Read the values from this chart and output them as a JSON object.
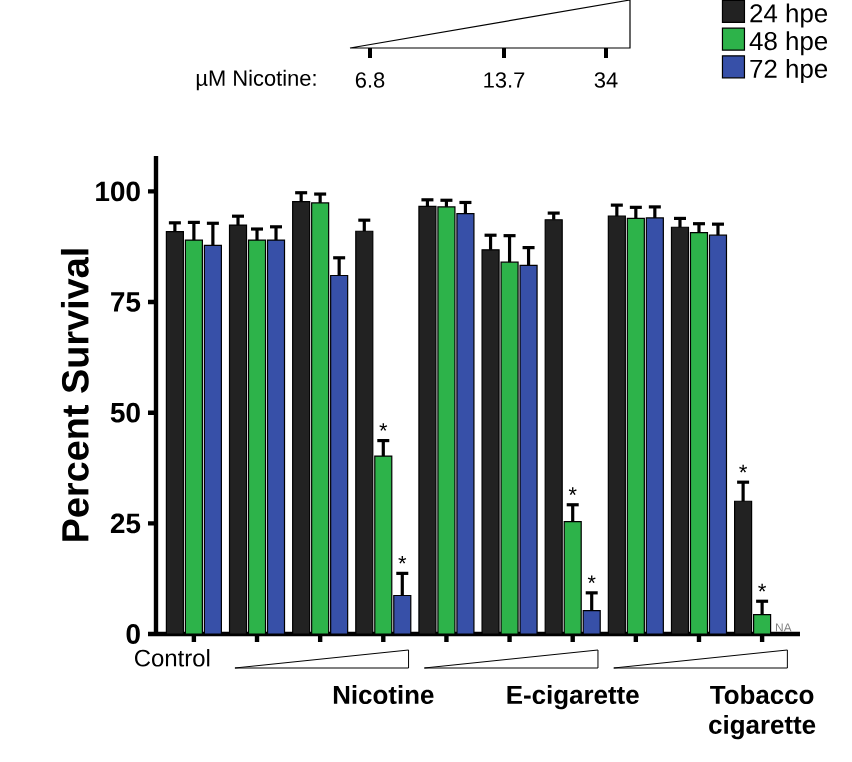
{
  "chart_data": {
    "type": "bar",
    "ylabel": "Percent Survival",
    "categories": [
      "Control",
      null,
      null,
      null,
      null,
      null,
      null,
      null,
      null,
      null
    ],
    "series": [
      {
        "name": "24 hpe",
        "color": "#222222",
        "values": [
          90.9,
          92.4,
          97.7,
          91,
          96.6,
          86.8,
          93.6,
          94.4,
          91.9,
          30
        ],
        "errors": [
          2,
          2,
          2,
          2.5,
          1.5,
          3.3,
          1.5,
          2.5,
          2,
          4.3
        ],
        "value_labels": [
          null,
          null,
          null,
          null,
          null,
          null,
          null,
          null,
          null,
          "*"
        ]
      },
      {
        "name": "48 hpe",
        "color": "#2db34a",
        "values": [
          89,
          89,
          97.4,
          40.2,
          96.5,
          84,
          25.4,
          93.9,
          90.7,
          4.4
        ],
        "errors": [
          4,
          2.5,
          2,
          3.5,
          1.5,
          6,
          3.8,
          2.5,
          2,
          3
        ],
        "value_labels": [
          null,
          null,
          null,
          "*",
          null,
          null,
          "*",
          null,
          null,
          "*"
        ]
      },
      {
        "name": "72 hpe",
        "color": "#3750a8",
        "values": [
          87.8,
          89,
          81,
          8.7,
          95,
          83.3,
          5.3,
          94,
          90.1,
          null
        ],
        "errors": [
          5,
          3,
          4,
          5,
          2.5,
          4,
          4,
          2.5,
          2.5,
          null
        ],
        "value_labels": [
          null,
          null,
          null,
          "*",
          null,
          null,
          "*",
          null,
          null,
          "NA"
        ]
      }
    ],
    "ylim": [
      0,
      108
    ],
    "yticks": [
      0,
      25,
      50,
      75,
      100
    ],
    "grid": false,
    "legend": "top right",
    "annotations": [
      "Nicotine",
      "E-cigarette",
      "Tobacco cigarette",
      "µM Nicotine:",
      "6.8",
      "13.7",
      "34"
    ]
  }
}
